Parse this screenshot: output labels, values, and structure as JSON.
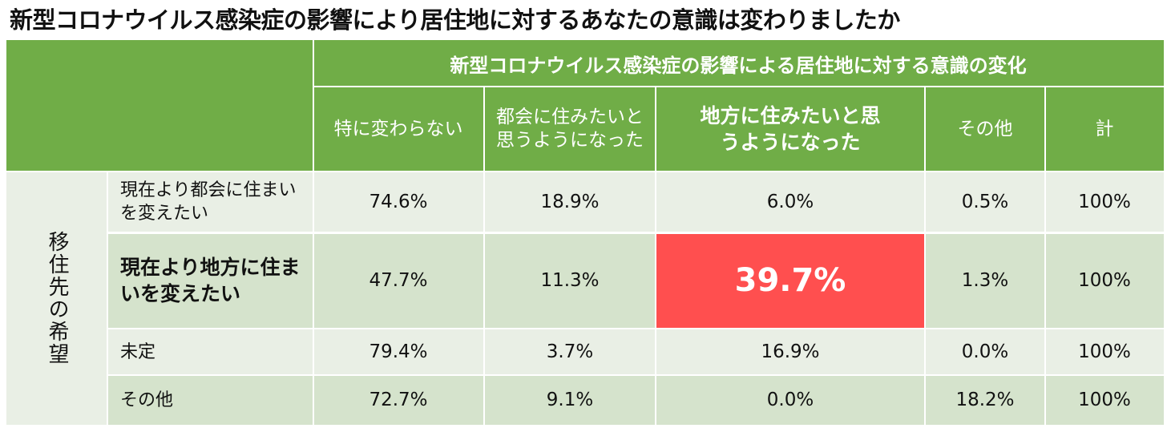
{
  "chart_data": {
    "type": "table",
    "title": "新型コロナウイルス感染症の影響により居住地に対するあなたの意識は変わりましたか",
    "column_group_header": "新型コロナウイルス感染症の影響による居住地に対する意識の変化",
    "row_group_header": "移住先の希望",
    "columns": [
      "特に変わらない",
      "都会に住みたいと思うようになった",
      "地方に住みたいと思うようになった",
      "その他",
      "計"
    ],
    "rows": [
      {
        "label": "現在より都会に住まいを変えたい",
        "values": [
          "74.6%",
          "18.9%",
          "6.0%",
          "0.5%",
          "100%"
        ]
      },
      {
        "label": "現在より地方に住まいを変えたい",
        "values": [
          "47.7%",
          "11.3%",
          "39.7%",
          "1.3%",
          "100%"
        ]
      },
      {
        "label": "未定",
        "values": [
          "79.4%",
          "3.7%",
          "16.9%",
          "0.0%",
          "100%"
        ]
      },
      {
        "label": "その他",
        "values": [
          "72.7%",
          "9.1%",
          "0.0%",
          "18.2%",
          "100%"
        ]
      }
    ],
    "highlight": {
      "row": 1,
      "column": 2,
      "color": "#FF4F4F"
    },
    "colors": {
      "header": "#70AD47",
      "row_light": "#E9EFE5",
      "row_dark": "#D5E3CC",
      "text": "#111111"
    }
  }
}
